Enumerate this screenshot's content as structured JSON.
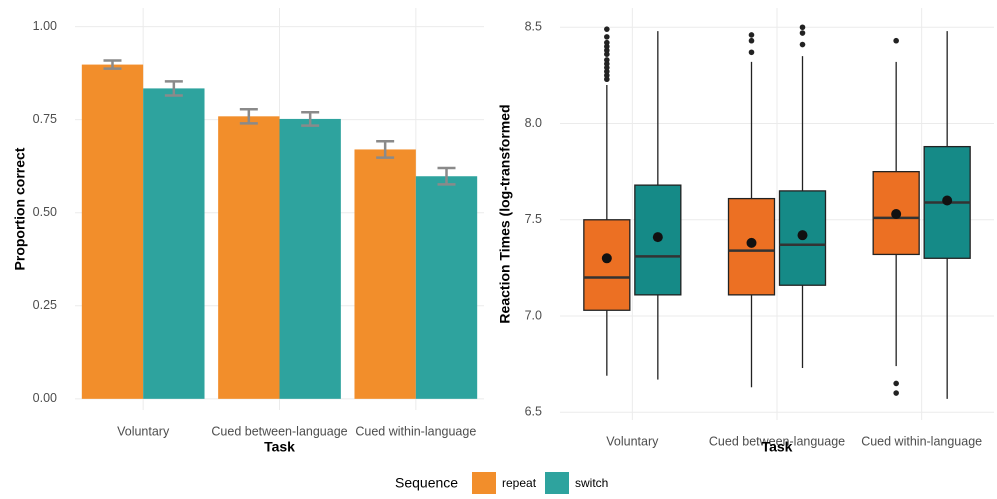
{
  "chart_data": [
    {
      "type": "bar",
      "xlabel": "Task",
      "ylabel": "Proportion correct",
      "categories": [
        "Voluntary",
        "Cued between-language",
        "Cued within-language"
      ],
      "ylim": [
        -0.03,
        1.05
      ],
      "yticks": [
        {
          "value": 0,
          "label": "0.00"
        },
        0.25,
        {
          "value": 0.5,
          "label": "0.50"
        },
        0.75,
        {
          "value": 1,
          "label": "1.00"
        }
      ],
      "grid": true,
      "legend_title": "Sequence",
      "series": [
        {
          "name": "repeat",
          "color": "#f28e2b",
          "values": [
            0.898,
            0.759,
            0.67
          ],
          "errors": [
            0.011,
            0.019,
            0.022
          ]
        },
        {
          "name": "switch",
          "color": "#2ea39e",
          "values": [
            0.834,
            0.752,
            0.598
          ],
          "errors": [
            0.019,
            0.018,
            0.022
          ]
        }
      ]
    },
    {
      "type": "box",
      "xlabel": "Task",
      "ylabel": "Reaction Times (log-transformed",
      "categories": [
        "Voluntary",
        "Cued between-language",
        "Cued within-language"
      ],
      "ylim": [
        6.46,
        8.6
      ],
      "yticks": [
        6.5,
        {
          "value": 7,
          "label": "7.0"
        },
        7.5,
        {
          "value": 8,
          "label": "8.0"
        },
        8.5
      ],
      "grid": true,
      "series": [
        {
          "color": "#ec7023",
          "values": [
            {
              "whislo": 6.69,
              "q1": 7.03,
              "med": 7.2,
              "q3": 7.5,
              "whishi": 8.2,
              "mean": 7.3,
              "fliers": [
                8.49,
                8.45,
                8.42,
                8.4,
                8.38,
                8.36,
                8.33,
                8.31,
                8.29,
                8.27,
                8.25,
                8.23
              ]
            },
            {
              "whislo": 6.63,
              "q1": 7.11,
              "med": 7.34,
              "q3": 7.61,
              "whishi": 8.32,
              "mean": 7.38,
              "fliers": [
                8.46,
                8.43,
                8.37
              ]
            },
            {
              "whislo": 6.74,
              "q1": 7.32,
              "med": 7.51,
              "q3": 7.75,
              "whishi": 8.32,
              "mean": 7.53,
              "fliers": [
                8.43,
                6.65,
                6.6
              ]
            }
          ]
        },
        {
          "color": "#158a87",
          "values": [
            {
              "whislo": 6.67,
              "q1": 7.11,
              "med": 7.31,
              "q3": 7.68,
              "whishi": 8.48,
              "mean": 7.41,
              "fliers": []
            },
            {
              "whislo": 6.73,
              "q1": 7.16,
              "med": 7.37,
              "q3": 7.65,
              "whishi": 8.35,
              "mean": 7.42,
              "fliers": [
                8.5,
                8.47,
                8.41
              ]
            },
            {
              "whislo": 6.57,
              "q1": 7.3,
              "med": 7.59,
              "q3": 7.88,
              "whishi": 8.48,
              "mean": 7.6,
              "fliers": []
            }
          ]
        }
      ]
    }
  ]
}
